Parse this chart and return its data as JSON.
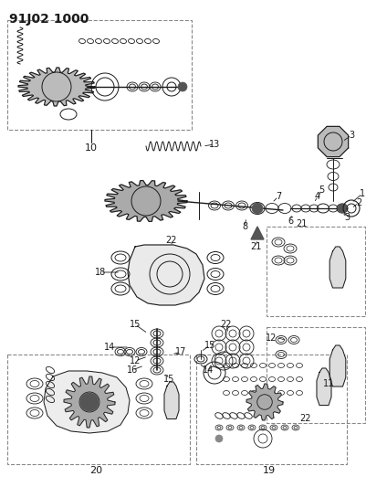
{
  "title": "91J02 1000",
  "bg_color": "#ffffff",
  "lc": "#1a1a1a",
  "dc": "#888888",
  "fig_width": 4.02,
  "fig_height": 5.33,
  "dpi": 100
}
